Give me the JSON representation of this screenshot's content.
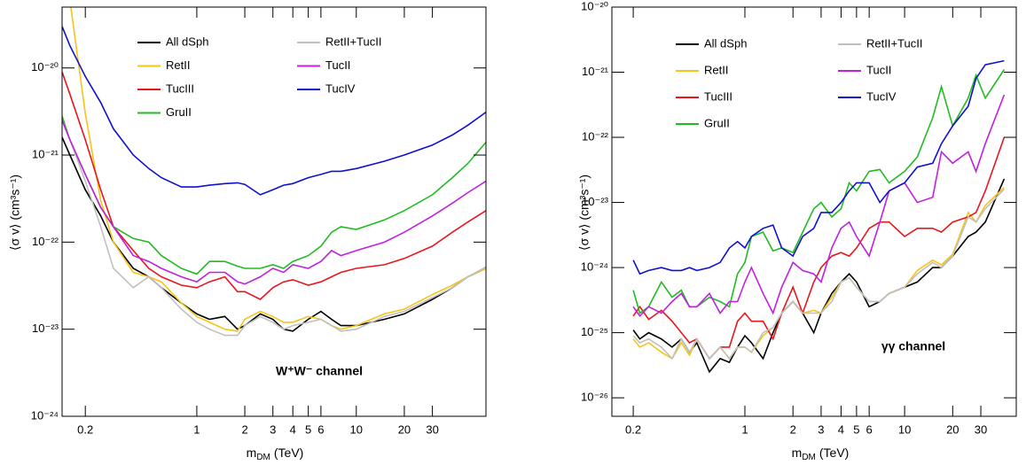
{
  "chart_data": [
    {
      "type": "line",
      "log_x": true,
      "log_y": true,
      "x_label": {
        "text": "m",
        "subscript": "DM",
        "unit": "(TeV)"
      },
      "y_label": "⟨σ v⟩ (cm³s⁻¹)",
      "annotation": "W⁺W⁻ channel",
      "xlim": [
        0.143,
        65
      ],
      "ylim": [
        1e-24,
        5e-20
      ],
      "xticks": [
        0.2,
        1,
        2,
        3,
        4,
        5,
        6,
        10,
        20,
        30
      ],
      "yticks": [
        {
          "value": 1e-24,
          "label": "10⁻²⁴"
        },
        {
          "value": 1e-23,
          "label": "10⁻²³"
        },
        {
          "value": 1e-22,
          "label": "10⁻²²"
        },
        {
          "value": 1e-21,
          "label": "10⁻²¹"
        },
        {
          "value": 1e-20,
          "label": "10⁻²⁰"
        }
      ],
      "x": [
        0.143,
        0.16,
        0.2,
        0.25,
        0.3,
        0.4,
        0.5,
        0.6,
        0.8,
        1,
        1.2,
        1.5,
        1.8,
        2,
        2.5,
        3,
        3.5,
        4,
        5,
        6,
        7,
        8,
        10,
        15,
        20,
        30,
        40,
        50,
        65
      ],
      "series": [
        {
          "name": "All dSph",
          "color": "#000000",
          "values": [
            1.6e-21,
            1e-21,
            4e-22,
            2e-22,
            1e-22,
            5e-23,
            4e-23,
            3e-23,
            2e-23,
            1.5e-23,
            1.3e-23,
            1.4e-23,
            1e-23,
            1.1e-23,
            1.5e-23,
            1.3e-23,
            1e-23,
            9.5e-24,
            1.3e-23,
            1.6e-23,
            1.3e-23,
            1.1e-23,
            1.1e-23,
            1.3e-23,
            1.5e-23,
            2.2e-23,
            3e-23,
            4e-23,
            5e-23
          ]
        },
        {
          "name": "RetII",
          "color": "#f5c518",
          "values": [
            null,
            6e-20,
            3e-21,
            3e-22,
            1e-22,
            4.5e-23,
            4e-23,
            3.5e-23,
            2e-23,
            1.4e-23,
            1.2e-23,
            1e-23,
            9.5e-24,
            1.3e-23,
            1.6e-23,
            1.4e-23,
            1.2e-23,
            1.2e-23,
            1.4e-23,
            1.3e-23,
            1.1e-23,
            1e-23,
            1.1e-23,
            1.5e-23,
            1.7e-23,
            2.5e-23,
            3.2e-23,
            4e-23,
            5e-23
          ]
        },
        {
          "name": "TucIII",
          "color": "#e8161c",
          "values": [
            9e-21,
            5e-21,
            1.5e-21,
            4e-22,
            1.5e-22,
            8e-23,
            5e-23,
            4e-23,
            3.2e-23,
            3e-23,
            3.5e-23,
            4e-23,
            2.7e-23,
            2.7e-23,
            2.2e-23,
            3e-23,
            3.5e-23,
            3.7e-23,
            3.2e-23,
            3.5e-23,
            4e-23,
            4.5e-23,
            5e-23,
            5.5e-23,
            6.5e-23,
            9e-23,
            1.3e-22,
            1.7e-22,
            2.3e-22
          ]
        },
        {
          "name": "GruII",
          "color": "#22bb22",
          "values": [
            2.8e-21,
            1.5e-21,
            6e-22,
            2.5e-22,
            1.5e-22,
            1.1e-22,
            1e-22,
            7e-23,
            5e-23,
            4.3e-23,
            6e-23,
            6e-23,
            5.3e-23,
            5e-23,
            5e-23,
            5.5e-23,
            5e-23,
            6e-23,
            7e-23,
            9e-23,
            1.3e-22,
            1.5e-22,
            1.4e-22,
            1.8e-22,
            2.3e-22,
            3.5e-22,
            5.5e-22,
            8e-22,
            1.4e-21
          ]
        },
        {
          "name": "RetII+TucII",
          "color": "#c0c0c0",
          "values": [
            2.5e-21,
            1.5e-21,
            5e-22,
            1.5e-22,
            5e-23,
            3e-23,
            4e-23,
            3e-23,
            1.7e-23,
            1.2e-23,
            1e-23,
            8.5e-24,
            8.5e-24,
            1.1e-23,
            1.4e-23,
            1.2e-23,
            1e-23,
            1.1e-23,
            1.2e-23,
            1.3e-23,
            1.1e-23,
            9.5e-24,
            1e-23,
            1.4e-23,
            1.6e-23,
            2.3e-23,
            3e-23,
            4e-23,
            5.2e-23
          ]
        },
        {
          "name": "TucII",
          "color": "#c020e0",
          "values": [
            2.5e-21,
            1.5e-21,
            6e-22,
            2.5e-22,
            1.5e-22,
            7e-23,
            6e-23,
            5e-23,
            4e-23,
            3.5e-23,
            4.5e-23,
            4.5e-23,
            3.5e-23,
            3.3e-23,
            4e-23,
            5e-23,
            4.5e-23,
            5.5e-23,
            5e-23,
            6e-23,
            8e-23,
            7e-23,
            8e-23,
            1e-22,
            1.3e-22,
            2e-22,
            2.8e-22,
            3.7e-22,
            5e-22
          ]
        },
        {
          "name": "TucIV",
          "color": "#1010d0",
          "values": [
            3e-20,
            1.8e-20,
            8e-21,
            4e-21,
            2e-21,
            1e-21,
            7e-22,
            5.5e-22,
            4.3e-22,
            4.3e-22,
            4.5e-22,
            4.7e-22,
            4.8e-22,
            4.6e-22,
            3.5e-22,
            4e-22,
            4.5e-22,
            4.7e-22,
            5.5e-22,
            6e-22,
            6.5e-22,
            6.5e-22,
            7e-22,
            8.5e-22,
            1e-21,
            1.3e-21,
            1.7e-21,
            2.2e-21,
            3.1e-21
          ]
        }
      ]
    },
    {
      "type": "line",
      "log_x": true,
      "log_y": true,
      "x_label": {
        "text": "m",
        "subscript": "DM",
        "unit": "(TeV)"
      },
      "y_label": "⟨σ v⟩ (cm³s⁻¹)",
      "annotation": "γγ channel",
      "xlim": [
        0.147,
        50
      ],
      "ylim": [
        5.2e-27,
        1e-20
      ],
      "xticks": [
        0.2,
        1,
        2,
        3,
        4,
        5,
        6,
        10,
        20,
        30
      ],
      "yticks": [
        {
          "value": 1e-26,
          "label": "10⁻²⁶"
        },
        {
          "value": 1e-25,
          "label": "10⁻²⁵"
        },
        {
          "value": 1e-24,
          "label": "10⁻²⁴"
        },
        {
          "value": 1e-23,
          "label": "10⁻²³"
        },
        {
          "value": 1e-22,
          "label": "10⁻²²"
        },
        {
          "value": 1e-21,
          "label": "10⁻²¹"
        },
        {
          "value": 1e-20,
          "label": "10⁻²⁰"
        }
      ],
      "x": [
        0.2,
        0.22,
        0.25,
        0.3,
        0.35,
        0.4,
        0.45,
        0.5,
        0.6,
        0.7,
        0.8,
        0.9,
        1,
        1.1,
        1.3,
        1.5,
        1.7,
        2,
        2.3,
        2.7,
        3,
        3.5,
        4,
        4.5,
        5,
        6,
        7,
        8,
        10,
        12,
        15,
        17,
        20,
        25,
        28,
        32,
        42
      ],
      "series": [
        {
          "name": "All dSph",
          "color": "#000000",
          "values": [
            1.1e-25,
            8e-26,
            1e-25,
            8e-26,
            6e-26,
            8e-26,
            5e-26,
            7e-26,
            2.5e-26,
            4e-26,
            3.5e-26,
            6e-26,
            9e-26,
            7e-26,
            4e-26,
            1e-25,
            2e-25,
            3e-25,
            2e-25,
            1e-25,
            2e-25,
            4e-25,
            6e-25,
            8e-25,
            6e-25,
            2.5e-25,
            3e-25,
            4e-25,
            5e-25,
            6e-25,
            1e-24,
            1e-24,
            1.5e-24,
            3e-24,
            3.5e-24,
            5e-24,
            2.3e-23
          ]
        },
        {
          "name": "RetII",
          "color": "#f5c518",
          "values": [
            8e-26,
            6e-26,
            7e-26,
            5e-26,
            4e-26,
            7e-26,
            4.5e-26,
            8e-26,
            4e-26,
            6e-26,
            4e-26,
            6e-26,
            6e-26,
            5e-26,
            9e-26,
            1.2e-25,
            2e-25,
            3e-25,
            2e-25,
            2.2e-25,
            2e-25,
            3.5e-25,
            6e-25,
            7e-25,
            5e-25,
            3e-25,
            3e-25,
            4e-25,
            5e-25,
            9e-25,
            1.3e-24,
            1.1e-24,
            1.6e-24,
            7e-24,
            5e-24,
            9e-24,
            1.7e-23
          ]
        },
        {
          "name": "TucIII",
          "color": "#e8161c",
          "values": [
            1.8e-25,
            2.5e-25,
            1.6e-25,
            2.2e-25,
            1.5e-25,
            1e-25,
            7e-26,
            8e-26,
            4e-26,
            6e-26,
            6e-26,
            1.5e-25,
            2e-25,
            1.5e-25,
            1.5e-25,
            8e-26,
            2e-25,
            5e-25,
            2e-25,
            6e-25,
            1e-24,
            1.5e-24,
            1.7e-24,
            1.5e-24,
            2e-24,
            4e-24,
            5e-24,
            5e-24,
            3e-24,
            4e-24,
            4e-24,
            3.5e-24,
            5e-24,
            6e-24,
            7e-24,
            1.5e-23,
            1e-22
          ]
        },
        {
          "name": "GruII",
          "color": "#22bb22",
          "values": [
            4.5e-25,
            2e-25,
            2.5e-25,
            6e-25,
            3.5e-25,
            4.5e-25,
            2.5e-25,
            2.5e-25,
            3.5e-25,
            3e-25,
            2.5e-25,
            8e-25,
            1.2e-24,
            3e-24,
            3.5e-24,
            1.8e-24,
            2e-24,
            1.7e-24,
            3.5e-24,
            8e-24,
            1e-23,
            6e-24,
            8e-24,
            2e-23,
            1.5e-23,
            3e-23,
            3.2e-23,
            2e-23,
            3e-23,
            5e-23,
            2e-22,
            6e-22,
            1.5e-22,
            4e-22,
            9e-22,
            4e-22,
            1.1e-21
          ]
        },
        {
          "name": "RetII+TucII",
          "color": "#c0c0c0",
          "values": [
            9e-26,
            7e-26,
            8e-26,
            6e-26,
            4e-26,
            8e-26,
            5e-26,
            8e-26,
            4e-26,
            6e-26,
            4e-26,
            6e-26,
            6e-26,
            5e-26,
            1e-25,
            1.2e-25,
            2e-25,
            3e-25,
            2e-25,
            2e-25,
            2e-25,
            3e-25,
            6e-25,
            7e-25,
            5e-25,
            3e-25,
            3e-25,
            4e-25,
            5e-25,
            8e-25,
            1.2e-24,
            1e-24,
            1.5e-24,
            6e-24,
            5e-24,
            8e-24,
            1.6e-23
          ]
        },
        {
          "name": "TucII",
          "color": "#c020e0",
          "values": [
            2.5e-25,
            1.8e-25,
            2.5e-25,
            2e-25,
            3e-25,
            4e-25,
            2.5e-25,
            2.5e-25,
            4e-25,
            2e-25,
            3e-25,
            3e-25,
            6e-25,
            1e-24,
            4e-25,
            2e-25,
            5e-25,
            1.2e-24,
            9e-25,
            8e-25,
            6e-25,
            2e-24,
            4e-24,
            5e-24,
            3e-24,
            1.5e-24,
            5e-24,
            1.5e-23,
            2e-23,
            1e-23,
            1.2e-23,
            6e-23,
            4e-23,
            6e-23,
            3e-23,
            8e-23,
            4.5e-22
          ]
        },
        {
          "name": "TucIV",
          "color": "#1010d0",
          "values": [
            1.3e-24,
            8e-25,
            9e-25,
            1e-24,
            9e-25,
            9e-25,
            1e-24,
            9e-25,
            1e-24,
            1.2e-24,
            2e-24,
            2.5e-24,
            2e-24,
            3e-24,
            4e-24,
            4.5e-24,
            2e-24,
            1.5e-24,
            3e-24,
            4e-24,
            7e-24,
            7e-24,
            1e-23,
            1.5e-23,
            2e-23,
            2e-23,
            1e-23,
            1.5e-23,
            2e-23,
            3.5e-23,
            4e-23,
            8e-23,
            1.5e-22,
            3e-22,
            8e-22,
            1.3e-21,
            1.5e-21
          ]
        }
      ]
    }
  ]
}
